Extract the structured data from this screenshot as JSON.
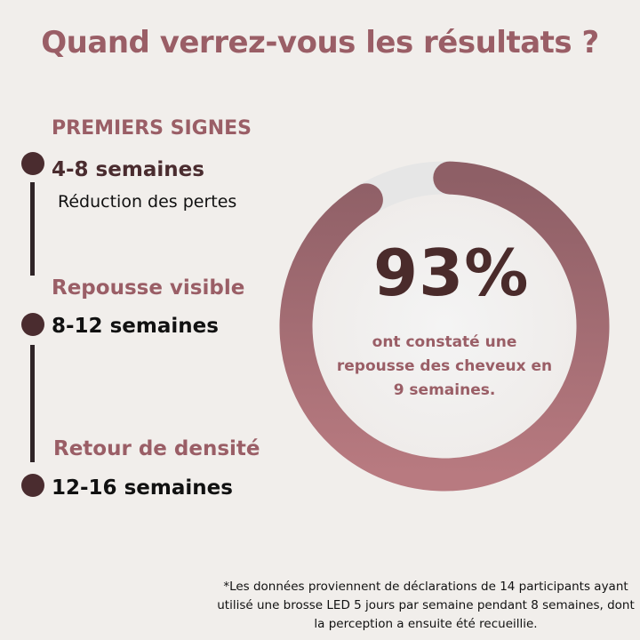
{
  "title": "Quand verrez-vous les résultats ?",
  "timeline": [
    {
      "stage": "PREMIERS SIGNES",
      "weeks": "4-8 semaines",
      "description": "Réduction des pertes"
    },
    {
      "stage": "Repousse visible",
      "weeks": "8-12 semaines"
    },
    {
      "stage": "Retour de densité",
      "weeks": "12-16 semaines"
    }
  ],
  "stat": {
    "value_label": "93%",
    "percent": 93,
    "caption": "ont constaté une repousse des cheveux en 9 semaines."
  },
  "footnote": "*Les données proviennent de déclarations de 14 participants ayant utilisé une brosse LED 5 jours par semaine pendant 8 semaines, dont la perception a ensuite été recueillie.",
  "colors": {
    "accent": "#9a5e66",
    "dark": "#4a2c2f",
    "ring_start": "#b87a80",
    "ring_end": "#8e5f66",
    "track": "#e6e6e6",
    "background": "#f1eeeb"
  }
}
